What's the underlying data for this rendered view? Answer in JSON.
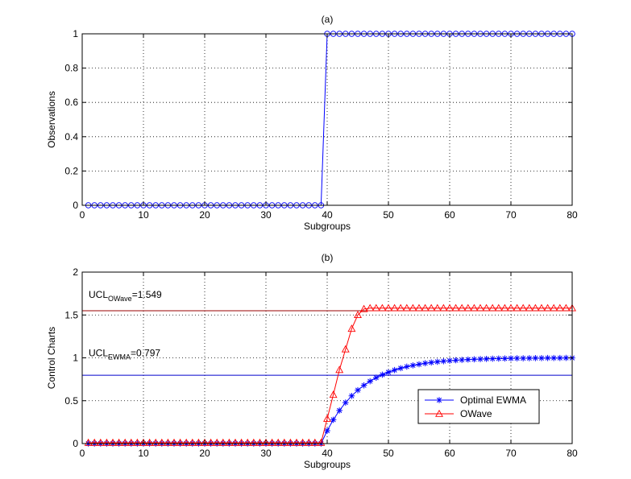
{
  "chart_data": [
    {
      "type": "line",
      "title": "(a)",
      "xlabel": "Subgroups",
      "ylabel": "Observations",
      "xlim": [
        0,
        80
      ],
      "ylim": [
        0,
        1
      ],
      "xticks": [
        0,
        10,
        20,
        30,
        40,
        50,
        60,
        70,
        80
      ],
      "yticks": [
        0,
        0.2,
        0.4,
        0.6,
        0.8,
        1
      ],
      "ytick_labels": [
        "0",
        "0.2",
        "0.4",
        "0.6",
        "0.8",
        "1"
      ],
      "grid": true,
      "series": [
        {
          "color": "#0000ff",
          "marker": "circle",
          "x": [
            1,
            2,
            3,
            4,
            5,
            6,
            7,
            8,
            9,
            10,
            11,
            12,
            13,
            14,
            15,
            16,
            17,
            18,
            19,
            20,
            21,
            22,
            23,
            24,
            25,
            26,
            27,
            28,
            29,
            30,
            31,
            32,
            33,
            34,
            35,
            36,
            37,
            38,
            39,
            40,
            41,
            42,
            43,
            44,
            45,
            46,
            47,
            48,
            49,
            50,
            51,
            52,
            53,
            54,
            55,
            56,
            57,
            58,
            59,
            60,
            61,
            62,
            63,
            64,
            65,
            66,
            67,
            68,
            69,
            70,
            71,
            72,
            73,
            74,
            75,
            76,
            77,
            78,
            79,
            80
          ],
          "y": [
            0,
            0,
            0,
            0,
            0,
            0,
            0,
            0,
            0,
            0,
            0,
            0,
            0,
            0,
            0,
            0,
            0,
            0,
            0,
            0,
            0,
            0,
            0,
            0,
            0,
            0,
            0,
            0,
            0,
            0,
            0,
            0,
            0,
            0,
            0,
            0,
            0,
            0,
            0,
            1,
            1,
            1,
            1,
            1,
            1,
            1,
            1,
            1,
            1,
            1,
            1,
            1,
            1,
            1,
            1,
            1,
            1,
            1,
            1,
            1,
            1,
            1,
            1,
            1,
            1,
            1,
            1,
            1,
            1,
            1,
            1,
            1,
            1,
            1,
            1,
            1,
            1,
            1,
            1,
            1
          ]
        }
      ]
    },
    {
      "type": "line",
      "title": "(b)",
      "xlabel": "Subgroups",
      "ylabel": "Control Charts",
      "xlim": [
        0,
        80
      ],
      "ylim": [
        0,
        2
      ],
      "xticks": [
        0,
        10,
        20,
        30,
        40,
        50,
        60,
        70,
        80
      ],
      "yticks": [
        0,
        0.5,
        1,
        1.5,
        2
      ],
      "ytick_labels": [
        "0",
        "0.5",
        "1",
        "1.5",
        "2"
      ],
      "grid": true,
      "legend_position": "bottom-right",
      "series": [
        {
          "name": "Optimal EWMA",
          "color": "#0000ff",
          "marker": "star",
          "x": [
            1,
            2,
            3,
            4,
            5,
            6,
            7,
            8,
            9,
            10,
            11,
            12,
            13,
            14,
            15,
            16,
            17,
            18,
            19,
            20,
            21,
            22,
            23,
            24,
            25,
            26,
            27,
            28,
            29,
            30,
            31,
            32,
            33,
            34,
            35,
            36,
            37,
            38,
            39,
            40,
            41,
            42,
            43,
            44,
            45,
            46,
            47,
            48,
            49,
            50,
            51,
            52,
            53,
            54,
            55,
            56,
            57,
            58,
            59,
            60,
            61,
            62,
            63,
            64,
            65,
            66,
            67,
            68,
            69,
            70,
            71,
            72,
            73,
            74,
            75,
            76,
            77,
            78,
            79,
            80
          ],
          "y": [
            0,
            0,
            0,
            0,
            0,
            0,
            0,
            0,
            0,
            0,
            0,
            0,
            0,
            0,
            0,
            0,
            0,
            0,
            0,
            0,
            0,
            0,
            0,
            0,
            0,
            0,
            0,
            0,
            0,
            0,
            0,
            0,
            0,
            0,
            0,
            0,
            0,
            0,
            0,
            0.15,
            0.278,
            0.386,
            0.478,
            0.556,
            0.623,
            0.679,
            0.727,
            0.768,
            0.803,
            0.832,
            0.857,
            0.879,
            0.897,
            0.912,
            0.925,
            0.937,
            0.946,
            0.954,
            0.961,
            0.967,
            0.972,
            0.976,
            0.98,
            0.983,
            0.985,
            0.988,
            0.99,
            0.991,
            0.992,
            0.994,
            0.995,
            0.995,
            0.996,
            0.997,
            0.997,
            0.998,
            0.998,
            0.998,
            0.999,
            0.999
          ]
        },
        {
          "name": "OWave",
          "color": "#ff0000",
          "marker": "triangle",
          "x": [
            1,
            2,
            3,
            4,
            5,
            6,
            7,
            8,
            9,
            10,
            11,
            12,
            13,
            14,
            15,
            16,
            17,
            18,
            19,
            20,
            21,
            22,
            23,
            24,
            25,
            26,
            27,
            28,
            29,
            30,
            31,
            32,
            33,
            34,
            35,
            36,
            37,
            38,
            39,
            40,
            41,
            42,
            43,
            44,
            45,
            46,
            47,
            48,
            49,
            50,
            51,
            52,
            53,
            54,
            55,
            56,
            57,
            58,
            59,
            60,
            61,
            62,
            63,
            64,
            65,
            66,
            67,
            68,
            69,
            70,
            71,
            72,
            73,
            74,
            75,
            76,
            77,
            78,
            79,
            80
          ],
          "y": [
            0.01,
            0.01,
            0.01,
            0.01,
            0.01,
            0.01,
            0.01,
            0.01,
            0.01,
            0.01,
            0.01,
            0.01,
            0.01,
            0.01,
            0.01,
            0.01,
            0.01,
            0.01,
            0.01,
            0.01,
            0.01,
            0.01,
            0.01,
            0.01,
            0.01,
            0.01,
            0.01,
            0.01,
            0.01,
            0.01,
            0.01,
            0.01,
            0.01,
            0.01,
            0.01,
            0.01,
            0.01,
            0.01,
            0.01,
            0.29,
            0.57,
            0.86,
            1.1,
            1.34,
            1.5,
            1.57,
            1.58,
            1.58,
            1.58,
            1.58,
            1.58,
            1.58,
            1.58,
            1.58,
            1.58,
            1.58,
            1.58,
            1.58,
            1.58,
            1.58,
            1.58,
            1.58,
            1.58,
            1.58,
            1.58,
            1.58,
            1.58,
            1.58,
            1.58,
            1.58,
            1.58,
            1.58,
            1.58,
            1.58,
            1.58,
            1.58,
            1.58,
            1.58,
            1.58,
            1.58
          ]
        }
      ],
      "reference_lines": [
        {
          "label_main": "UCL",
          "label_sub": "OWave",
          "label_value": "=1.549",
          "y": 1.549,
          "color": "#990000"
        },
        {
          "label_main": "UCL",
          "label_sub": "EWMA",
          "label_value": "=0.797",
          "y": 0.797,
          "color": "#0000cc"
        }
      ]
    }
  ]
}
